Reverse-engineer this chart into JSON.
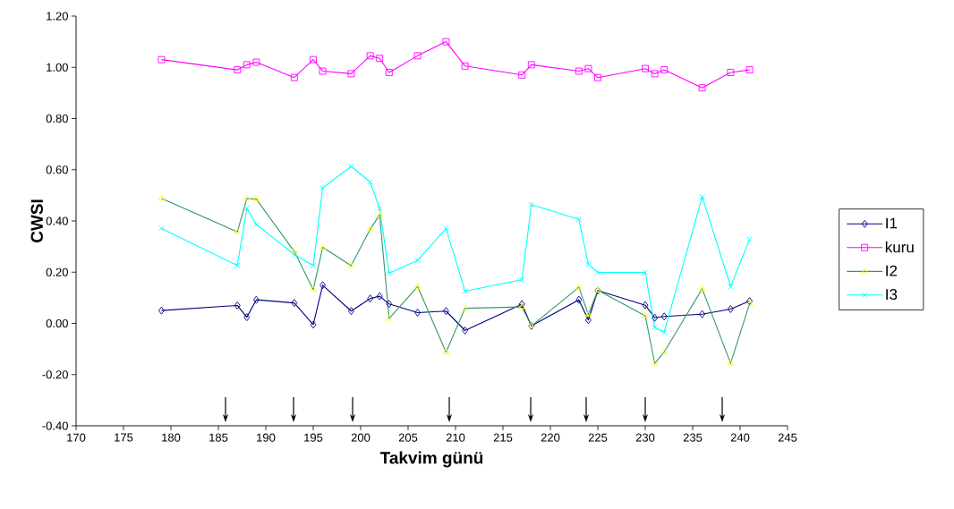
{
  "chart_data": {
    "type": "line",
    "xlabel": "Takvim günü",
    "ylabel": "CWSI",
    "x": [
      179,
      187,
      188,
      189,
      193,
      195,
      196,
      199,
      201,
      202,
      203,
      206,
      209,
      211,
      217,
      218,
      223,
      224,
      225,
      230,
      231,
      232,
      236,
      239,
      241
    ],
    "series": [
      {
        "name": "I1",
        "color": "#000080",
        "marker": "diamond",
        "values": [
          0.05,
          0.07,
          0.024,
          0.092,
          0.08,
          -0.005,
          0.149,
          0.048,
          0.097,
          0.106,
          0.076,
          0.042,
          0.048,
          -0.028,
          0.075,
          -0.01,
          0.092,
          0.013,
          0.128,
          0.071,
          0.022,
          0.027,
          0.036,
          0.056,
          0.087
        ]
      },
      {
        "name": "kuru",
        "color": "#ff00ff",
        "marker": "square",
        "values": [
          1.03,
          0.99,
          1.01,
          1.02,
          0.96,
          1.03,
          0.985,
          0.975,
          1.045,
          1.035,
          0.98,
          1.045,
          1.1,
          1.005,
          0.97,
          1.01,
          0.985,
          0.995,
          0.96,
          0.995,
          0.975,
          0.99,
          0.92,
          0.98,
          0.99
        ]
      },
      {
        "name": "I2",
        "color": "#339966",
        "marker": "triangle",
        "colors": [
          "#ffff00",
          "#ffff00",
          "#ffff00",
          "#ffff00",
          "#ffff00",
          "#ffff00",
          "#ffff00",
          "#ffff00",
          "#ffff00",
          "#ffff00",
          "#ffff00",
          "#ffff00",
          "#ffff00",
          "#ffff00",
          "#ffff00",
          "#ffff00",
          "#ffff00",
          "#ffff00",
          "#ffff00",
          "#ffff00",
          "#ffff00",
          "#ffff00",
          "#ffff00",
          "#ffff00",
          "#ffff00"
        ],
        "values": [
          0.488,
          0.357,
          0.488,
          0.485,
          0.281,
          0.132,
          0.297,
          0.225,
          0.368,
          0.423,
          0.019,
          0.144,
          -0.113,
          0.059,
          0.064,
          -0.01,
          0.141,
          0.034,
          0.129,
          0.03,
          -0.156,
          -0.112,
          0.135,
          -0.156,
          0.077
        ]
      },
      {
        "name": "I3",
        "color": "#00ffff",
        "marker": "cross",
        "values": [
          0.371,
          0.226,
          0.45,
          0.386,
          0.269,
          0.226,
          0.529,
          0.613,
          0.552,
          0.448,
          0.196,
          0.246,
          0.371,
          0.126,
          0.17,
          0.464,
          0.406,
          0.231,
          0.199,
          0.199,
          -0.016,
          -0.034,
          0.494,
          0.144,
          0.328
        ]
      }
    ],
    "xlim": [
      170,
      245
    ],
    "xticks": [
      170,
      175,
      180,
      185,
      190,
      195,
      200,
      205,
      210,
      215,
      220,
      225,
      230,
      235,
      240,
      245
    ],
    "ylim": [
      -0.4,
      1.2
    ],
    "yticks": [
      {
        "value": -0.4,
        "label": "-0.40"
      },
      {
        "value": -0.2,
        "label": "-0.20"
      },
      {
        "value": 0,
        "label": "0.00"
      },
      {
        "value": 0.2,
        "label": "0.20"
      },
      {
        "value": 0.4,
        "label": "0.40"
      },
      {
        "value": 0.6,
        "label": "0.60"
      },
      {
        "value": 0.8,
        "label": "0.80"
      },
      {
        "value": 1.0,
        "label": "1.00"
      },
      {
        "value": 1.2,
        "label": "1.20"
      }
    ],
    "legend": "right",
    "grid": false
  }
}
